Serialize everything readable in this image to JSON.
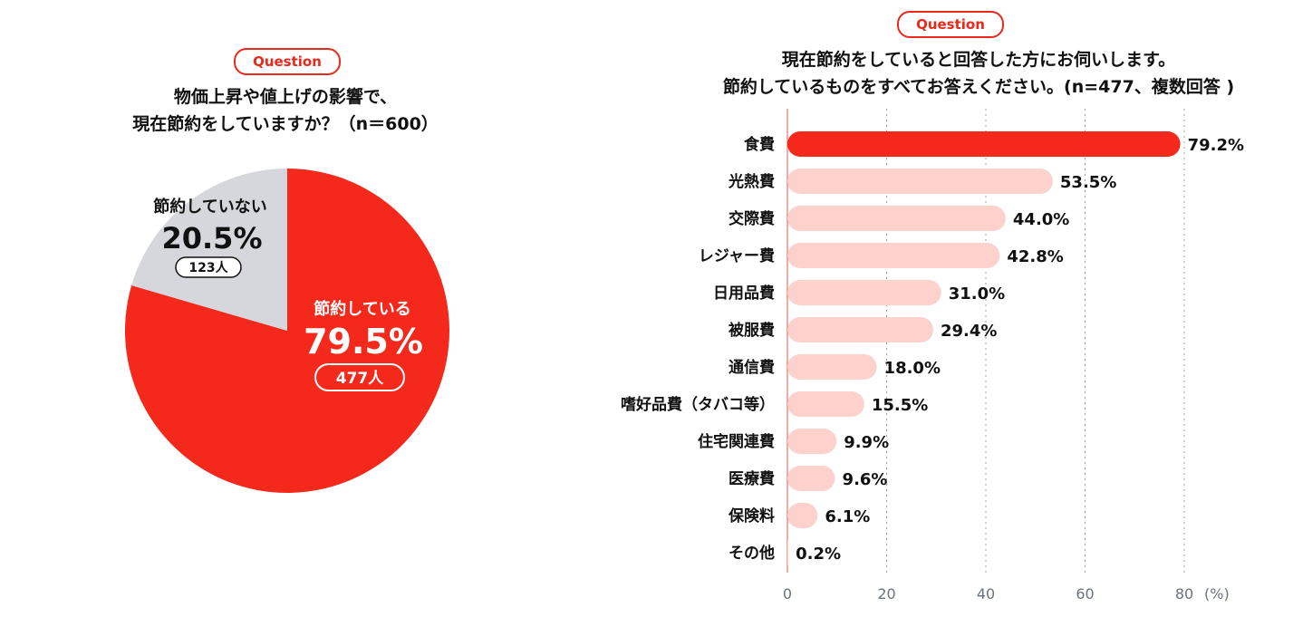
{
  "left_panel": {
    "badge": "Question",
    "title_line1": "物価上昇や値上げの影響で、",
    "title_line2": "現在節約をしていますか？（n＝600）"
  },
  "right_panel": {
    "badge": "Question",
    "title_line1": "現在節約をしていると回答した方にお伺いします。",
    "title_line2": "節約しているものをすべてお答えください。(n=477、複数回答 )"
  },
  "colors": {
    "accent": "#f5281c",
    "pie_gray": "#d5d7dc",
    "bar_light": "#fdd1cc",
    "axis_text": "#6b7280"
  },
  "chart_data": [
    {
      "type": "pie",
      "slices": [
        {
          "label": "節約している",
          "percent": 79.5,
          "percent_label": "79.5%",
          "count_label": "477人",
          "color": "#f5281c"
        },
        {
          "label": "節約していない",
          "percent": 20.5,
          "percent_label": "20.5%",
          "count_label": "123人",
          "color": "#d5d7dc"
        }
      ]
    },
    {
      "type": "bar",
      "orientation": "horizontal",
      "categories": [
        "食費",
        "光熱費",
        "交際費",
        "レジャー費",
        "日用品費",
        "被服費",
        "通信費",
        "嗜好品費（タバコ等）",
        "住宅関連費",
        "医療費",
        "保険料",
        "その他"
      ],
      "values": [
        79.2,
        53.5,
        44.0,
        42.8,
        31.0,
        29.4,
        18.0,
        15.5,
        9.9,
        9.6,
        6.1,
        0.2
      ],
      "value_labels": [
        "79.2%",
        "53.5%",
        "44.0%",
        "42.8%",
        "31.0%",
        "29.4%",
        "18.0%",
        "15.5%",
        "9.9%",
        "9.6%",
        "6.1%",
        "0.2%"
      ],
      "highlight_index": 0,
      "xlim": [
        0,
        80
      ],
      "xticks": [
        "0",
        "20",
        "40",
        "60",
        "80"
      ],
      "x_unit": "(%)",
      "grid": true
    }
  ]
}
